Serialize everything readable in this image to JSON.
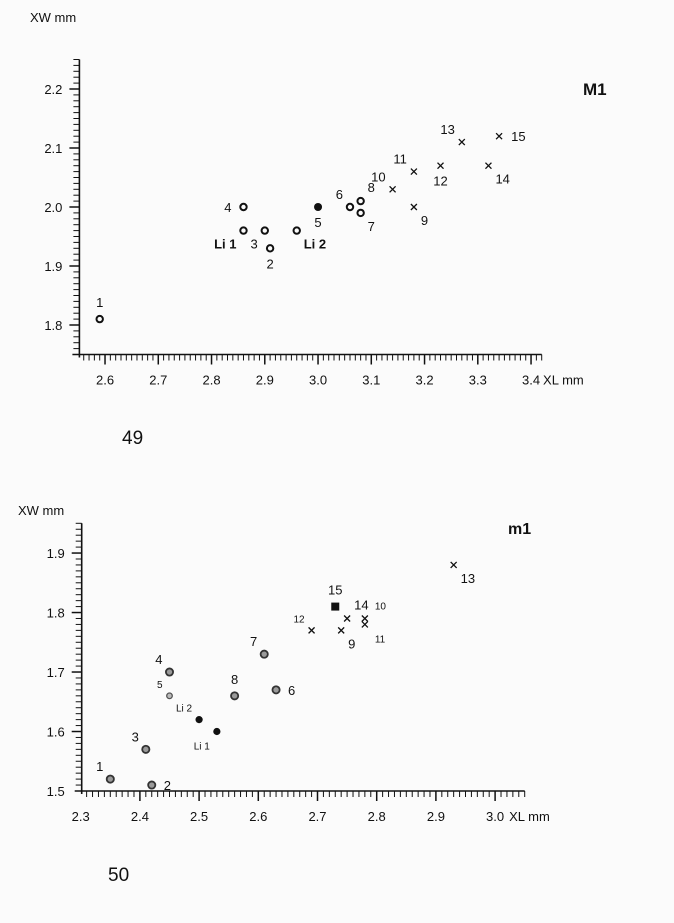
{
  "figure_numbers": [
    "49",
    "50"
  ],
  "chart_data": [
    {
      "type": "scatter",
      "title": "M1",
      "xlabel": "XL mm",
      "ylabel": "XW mm",
      "xlim": [
        2.55,
        3.42
      ],
      "ylim": [
        1.75,
        2.25
      ],
      "xticks": [
        "2.6",
        "2.7",
        "2.8",
        "2.9",
        "3.0",
        "3.1",
        "3.2",
        "3.3",
        "3.4"
      ],
      "yticks": [
        "1.8",
        "1.9",
        "2.0",
        "2.1",
        "2.2"
      ],
      "grid": false,
      "points": [
        {
          "x": 2.59,
          "y": 1.81,
          "marker": "open-circle",
          "labels": [
            {
              "text": "1",
              "pos": "above"
            }
          ]
        },
        {
          "x": 2.86,
          "y": 2.0,
          "marker": "open-circle",
          "labels": [
            {
              "text": "4",
              "pos": "left"
            }
          ]
        },
        {
          "x": 2.86,
          "y": 1.96,
          "marker": "open-circle",
          "labels": [
            {
              "text": "Li 1",
              "pos": "below-left",
              "bold": true
            },
            {
              "text": "3",
              "pos": "below-right"
            }
          ]
        },
        {
          "x": 2.9,
          "y": 1.96,
          "marker": "open-circle",
          "labels": []
        },
        {
          "x": 2.91,
          "y": 1.93,
          "marker": "open-circle",
          "labels": [
            {
              "text": "2",
              "pos": "below"
            }
          ]
        },
        {
          "x": 2.96,
          "y": 1.96,
          "marker": "open-circle",
          "labels": [
            {
              "text": "Li 2",
              "pos": "below-right",
              "bold": true
            }
          ]
        },
        {
          "x": 3.0,
          "y": 2.0,
          "marker": "filled-circle",
          "labels": [
            {
              "text": "5",
              "pos": "below"
            }
          ]
        },
        {
          "x": 3.06,
          "y": 2.0,
          "marker": "open-circle",
          "labels": [
            {
              "text": "6",
              "pos": "above-left"
            }
          ]
        },
        {
          "x": 3.08,
          "y": 2.01,
          "marker": "open-circle",
          "labels": [
            {
              "text": "8",
              "pos": "above-right"
            }
          ]
        },
        {
          "x": 3.08,
          "y": 1.99,
          "marker": "open-circle",
          "labels": [
            {
              "text": "7",
              "pos": "below-right"
            }
          ]
        },
        {
          "x": 3.14,
          "y": 2.03,
          "marker": "x",
          "labels": [
            {
              "text": "10",
              "pos": "above-left"
            }
          ]
        },
        {
          "x": 3.18,
          "y": 2.06,
          "marker": "x",
          "labels": [
            {
              "text": "11",
              "pos": "above-left"
            }
          ]
        },
        {
          "x": 3.18,
          "y": 2.0,
          "marker": "x",
          "labels": [
            {
              "text": "9",
              "pos": "below-right"
            }
          ]
        },
        {
          "x": 3.23,
          "y": 2.07,
          "marker": "x",
          "labels": [
            {
              "text": "12",
              "pos": "below"
            }
          ]
        },
        {
          "x": 3.27,
          "y": 2.11,
          "marker": "x",
          "labels": [
            {
              "text": "13",
              "pos": "above-left"
            }
          ]
        },
        {
          "x": 3.32,
          "y": 2.07,
          "marker": "x",
          "labels": [
            {
              "text": "14",
              "pos": "below-right"
            }
          ]
        },
        {
          "x": 3.34,
          "y": 2.12,
          "marker": "x",
          "labels": [
            {
              "text": "15",
              "pos": "right"
            }
          ]
        }
      ]
    },
    {
      "type": "scatter",
      "title": "m1",
      "xlabel": "XL mm",
      "ylabel": "XW mm",
      "xlim": [
        2.3,
        3.05
      ],
      "ylim": [
        1.5,
        1.95
      ],
      "xticks": [
        "2.3",
        "2.4",
        "2.5",
        "2.6",
        "2.7",
        "2.8",
        "2.9",
        "3.0"
      ],
      "yticks": [
        "1.5",
        "1.6",
        "1.7",
        "1.8",
        "1.9"
      ],
      "grid": false,
      "points": [
        {
          "x": 2.35,
          "y": 1.52,
          "marker": "gray-circle",
          "labels": [
            {
              "text": "1",
              "pos": "above-left"
            }
          ]
        },
        {
          "x": 2.42,
          "y": 1.51,
          "marker": "gray-circle",
          "labels": [
            {
              "text": "2",
              "pos": "right"
            }
          ]
        },
        {
          "x": 2.41,
          "y": 1.57,
          "marker": "gray-circle",
          "labels": [
            {
              "text": "3",
              "pos": "above-left"
            }
          ]
        },
        {
          "x": 2.45,
          "y": 1.7,
          "marker": "gray-circle",
          "labels": [
            {
              "text": "4",
              "pos": "above-left"
            }
          ]
        },
        {
          "x": 2.45,
          "y": 1.66,
          "marker": "gray-circle-small",
          "labels": [
            {
              "text": "5",
              "pos": "above-left",
              "small": true
            }
          ]
        },
        {
          "x": 2.5,
          "y": 1.62,
          "marker": "filled-circle",
          "labels": [
            {
              "text": "Li 2",
              "pos": "above-left",
              "small": true
            }
          ]
        },
        {
          "x": 2.53,
          "y": 1.6,
          "marker": "filled-circle",
          "labels": [
            {
              "text": "Li 1",
              "pos": "below-left",
              "small": true
            }
          ]
        },
        {
          "x": 2.56,
          "y": 1.66,
          "marker": "gray-circle",
          "labels": [
            {
              "text": "8",
              "pos": "above"
            }
          ]
        },
        {
          "x": 2.61,
          "y": 1.73,
          "marker": "gray-circle",
          "labels": [
            {
              "text": "7",
              "pos": "above-left"
            }
          ]
        },
        {
          "x": 2.63,
          "y": 1.67,
          "marker": "gray-circle",
          "labels": [
            {
              "text": "6",
              "pos": "right"
            }
          ]
        },
        {
          "x": 2.69,
          "y": 1.77,
          "marker": "x",
          "labels": [
            {
              "text": "12",
              "pos": "above-left",
              "small": true
            }
          ]
        },
        {
          "x": 2.73,
          "y": 1.81,
          "marker": "filled-square",
          "labels": [
            {
              "text": "15",
              "pos": "above"
            }
          ]
        },
        {
          "x": 2.75,
          "y": 1.79,
          "marker": "x",
          "labels": [
            {
              "text": "14",
              "pos": "above-right"
            }
          ]
        },
        {
          "x": 2.74,
          "y": 1.77,
          "marker": "x",
          "labels": [
            {
              "text": "9",
              "pos": "below-right"
            }
          ]
        },
        {
          "x": 2.78,
          "y": 1.79,
          "marker": "x",
          "labels": [
            {
              "text": "10",
              "pos": "above-right",
              "small": true
            }
          ]
        },
        {
          "x": 2.78,
          "y": 1.78,
          "marker": "x",
          "labels": [
            {
              "text": "11",
              "pos": "below-right",
              "small": true
            }
          ]
        },
        {
          "x": 2.93,
          "y": 1.88,
          "marker": "x",
          "labels": [
            {
              "text": "13",
              "pos": "below-right"
            }
          ]
        }
      ]
    }
  ],
  "colors": {
    "ink": "#111111",
    "gray_fill": "#9a9a9a",
    "background": "#fbfbfb"
  }
}
